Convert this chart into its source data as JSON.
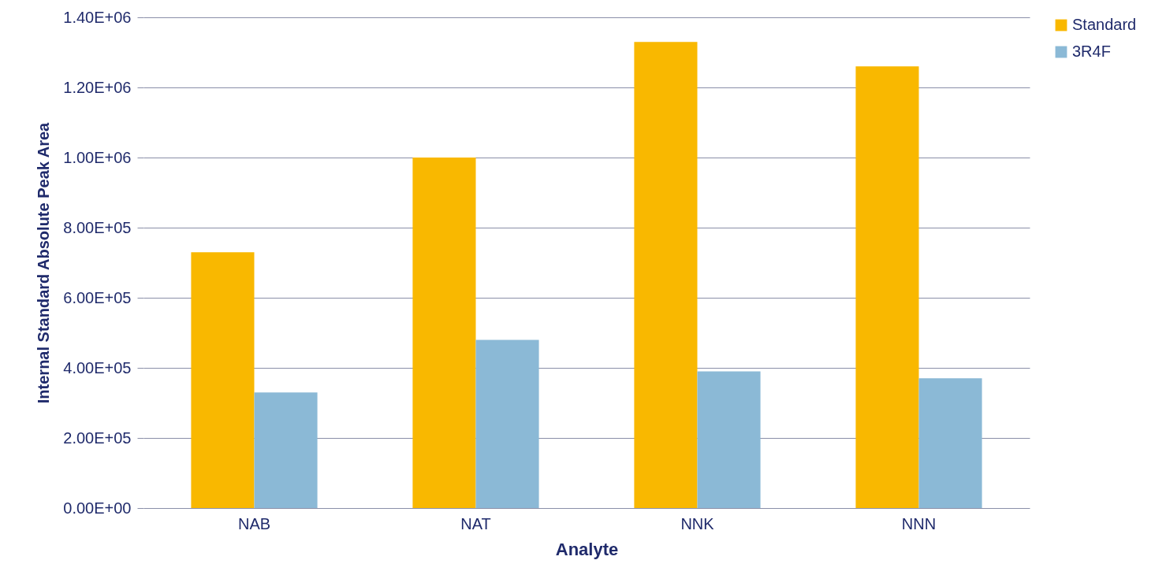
{
  "chart_data": {
    "type": "bar",
    "xlabel": "Analyte",
    "ylabel": "Internal Standard Absolute Peak Area",
    "categories": [
      "NAB",
      "NAT",
      "NNK",
      "NNN"
    ],
    "series": [
      {
        "name": "Standard",
        "color": "#f9b800",
        "values": [
          730000,
          1000000,
          1330000,
          1260000
        ]
      },
      {
        "name": "3R4F",
        "color": "#8bb9d6",
        "values": [
          330000,
          480000,
          390000,
          370000
        ]
      }
    ],
    "ylim": [
      0,
      1400000
    ],
    "yticks": [
      {
        "value": 0,
        "label": "0.00E+00"
      },
      {
        "value": 200000,
        "label": "2.00E+05"
      },
      {
        "value": 400000,
        "label": "4.00E+05"
      },
      {
        "value": 600000,
        "label": "6.00E+05"
      },
      {
        "value": 800000,
        "label": "8.00E+05"
      },
      {
        "value": 1000000,
        "label": "1.00E+06"
      },
      {
        "value": 1200000,
        "label": "1.20E+06"
      },
      {
        "value": 1400000,
        "label": "1.40E+06"
      }
    ],
    "grid": "y",
    "legend": "right"
  }
}
